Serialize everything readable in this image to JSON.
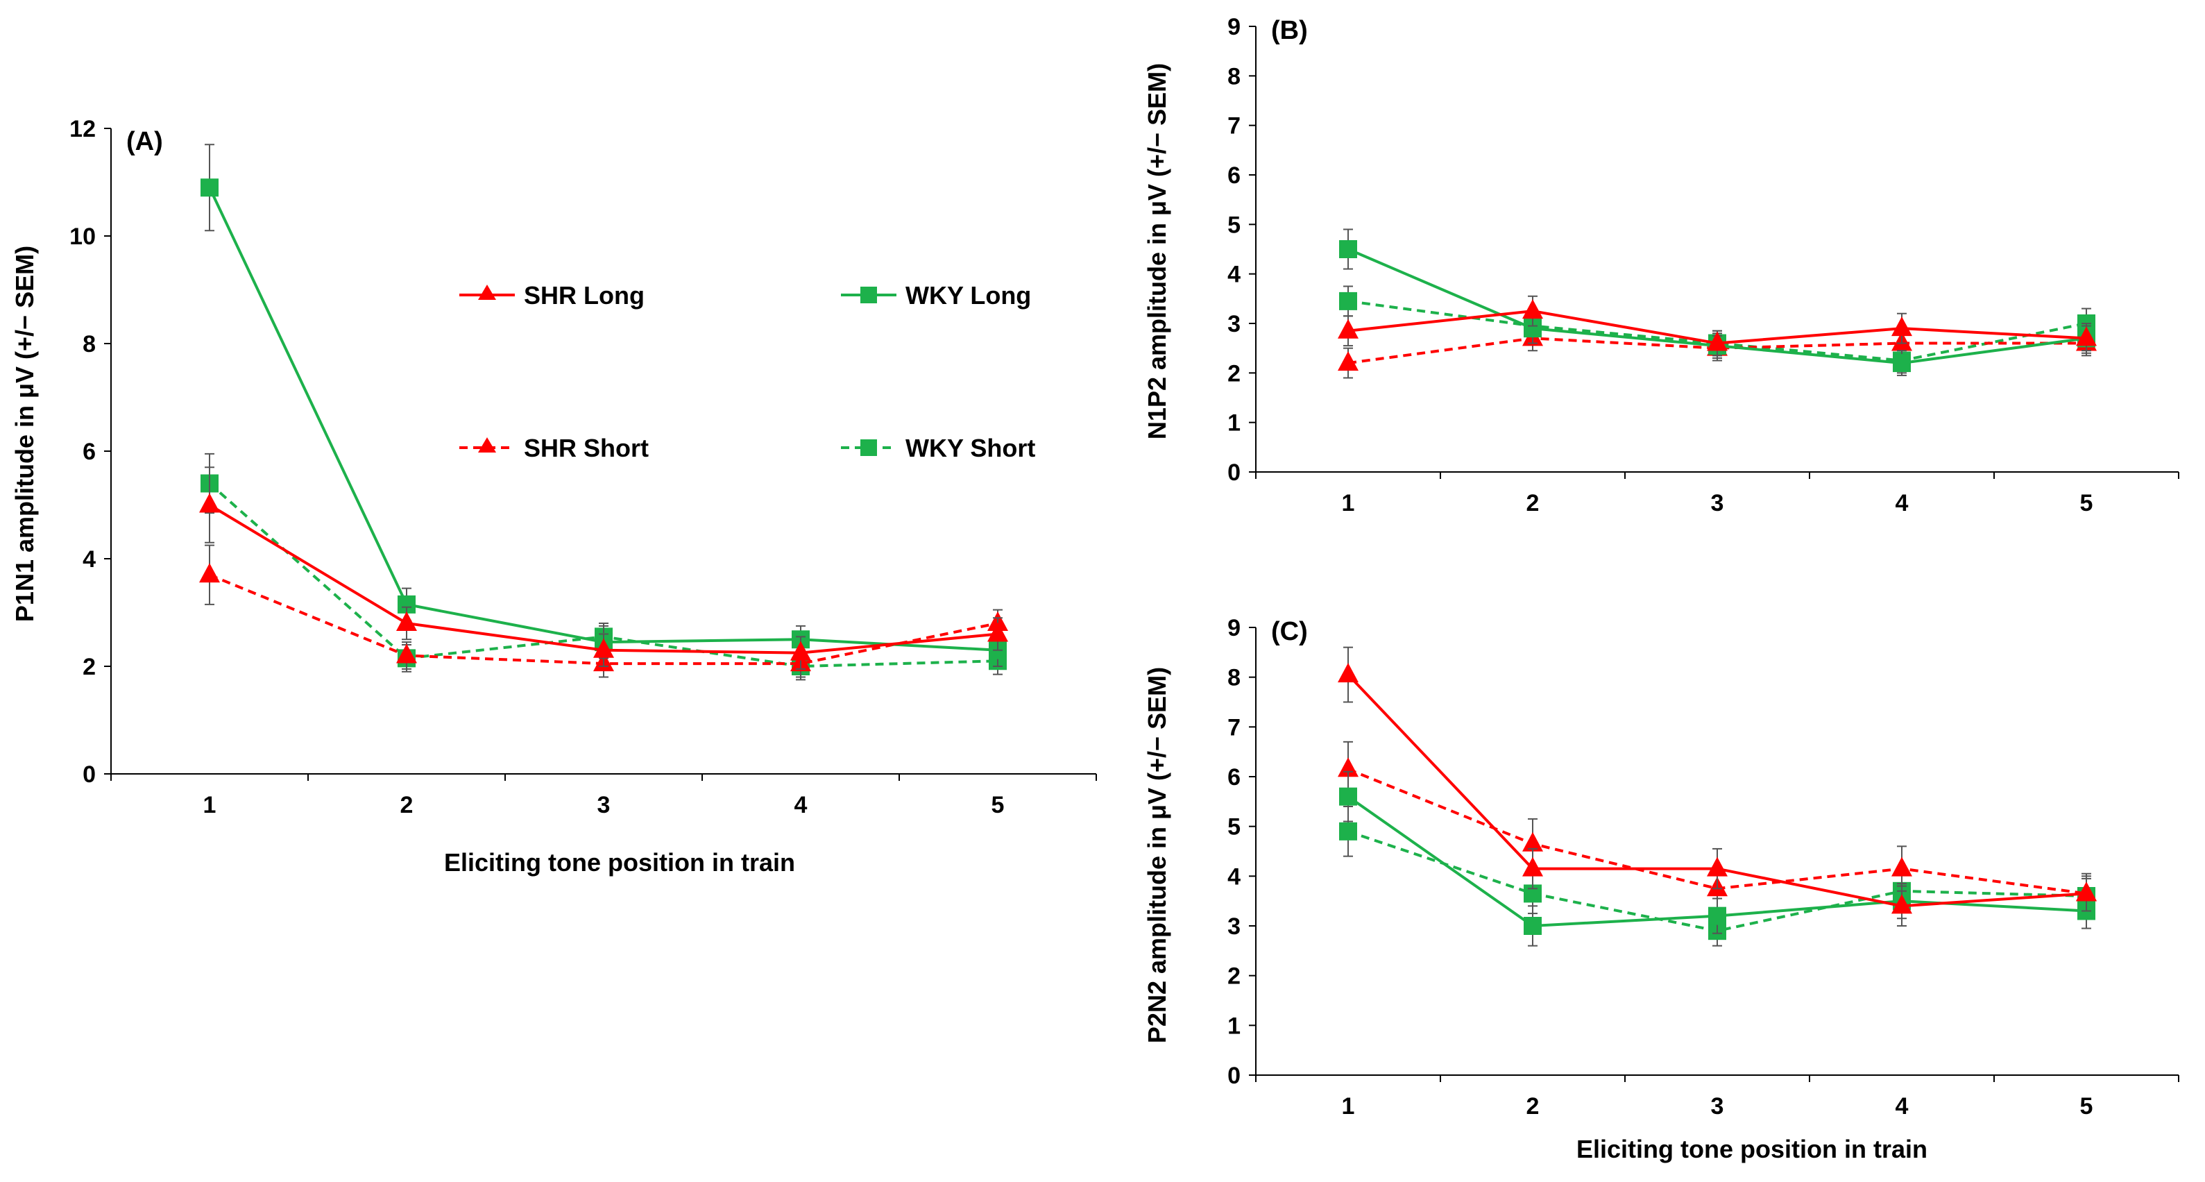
{
  "colors": {
    "SHR": "#ff0000",
    "WKY": "#1db14b",
    "axis": "#000000",
    "errorbar": "#555555"
  },
  "legend": [
    {
      "name": "SHR Long",
      "color": "#ff0000",
      "dash": "solid",
      "marker": "triangle"
    },
    {
      "name": "WKY Long",
      "color": "#1db14b",
      "dash": "solid",
      "marker": "square"
    },
    {
      "name": "SHR Short",
      "color": "#ff0000",
      "dash": "dashed",
      "marker": "triangle"
    },
    {
      "name": "WKY Short",
      "color": "#1db14b",
      "dash": "dashed",
      "marker": "square"
    }
  ],
  "chart_data": [
    {
      "id": "A",
      "panel_label": "(A)",
      "type": "line",
      "xlabel": "Eliciting tone position in train",
      "ylabel": "P1N1 amplitude in μV (+/− SEM)",
      "categories": [
        "1",
        "2",
        "3",
        "4",
        "5"
      ],
      "ylim": [
        0,
        12
      ],
      "yticks": [
        0,
        2,
        4,
        6,
        8,
        10,
        12
      ],
      "series": [
        {
          "name": "SHR Long",
          "values": [
            5.0,
            2.8,
            2.3,
            2.25,
            2.6
          ],
          "errors": [
            0.7,
            0.3,
            0.3,
            0.3,
            0.3
          ]
        },
        {
          "name": "WKY Long",
          "values": [
            10.9,
            3.15,
            2.45,
            2.5,
            2.3
          ],
          "errors": [
            0.8,
            0.3,
            0.3,
            0.25,
            0.3
          ]
        },
        {
          "name": "SHR Short",
          "values": [
            3.7,
            2.2,
            2.05,
            2.05,
            2.8
          ],
          "errors": [
            0.55,
            0.25,
            0.25,
            0.25,
            0.25
          ]
        },
        {
          "name": "WKY Short",
          "values": [
            5.4,
            2.15,
            2.55,
            2.0,
            2.1
          ],
          "errors": [
            0.55,
            0.25,
            0.25,
            0.25,
            0.25
          ]
        }
      ]
    },
    {
      "id": "B",
      "panel_label": "(B)",
      "type": "line",
      "xlabel": "",
      "ylabel": "N1P2 amplitude in μV (+/− SEM)",
      "categories": [
        "1",
        "2",
        "3",
        "4",
        "5"
      ],
      "ylim": [
        0,
        9
      ],
      "yticks": [
        0,
        1,
        2,
        3,
        4,
        5,
        6,
        7,
        8,
        9
      ],
      "series": [
        {
          "name": "SHR Long",
          "values": [
            2.85,
            3.25,
            2.6,
            2.9,
            2.7
          ],
          "errors": [
            0.3,
            0.3,
            0.25,
            0.3,
            0.25
          ]
        },
        {
          "name": "WKY Long",
          "values": [
            4.5,
            2.9,
            2.55,
            2.2,
            2.7
          ],
          "errors": [
            0.4,
            0.3,
            0.25,
            0.25,
            0.3
          ]
        },
        {
          "name": "SHR Short",
          "values": [
            2.2,
            2.7,
            2.5,
            2.6,
            2.6
          ],
          "errors": [
            0.3,
            0.25,
            0.25,
            0.3,
            0.25
          ]
        },
        {
          "name": "WKY Short",
          "values": [
            3.45,
            2.95,
            2.6,
            2.25,
            3.0
          ],
          "errors": [
            0.3,
            0.3,
            0.25,
            0.25,
            0.3
          ]
        }
      ]
    },
    {
      "id": "C",
      "panel_label": "(C)",
      "type": "line",
      "xlabel": "Eliciting tone position in train",
      "ylabel": "P2N2 amplitude in μV (+/− SEM)",
      "categories": [
        "1",
        "2",
        "3",
        "4",
        "5"
      ],
      "ylim": [
        0,
        9
      ],
      "yticks": [
        0,
        1,
        2,
        3,
        4,
        5,
        6,
        7,
        8,
        9
      ],
      "series": [
        {
          "name": "SHR Long",
          "values": [
            8.05,
            4.15,
            4.15,
            3.4,
            3.65
          ],
          "errors": [
            0.55,
            0.4,
            0.4,
            0.4,
            0.35
          ]
        },
        {
          "name": "WKY Long",
          "values": [
            5.6,
            3.0,
            3.2,
            3.5,
            3.3
          ],
          "errors": [
            0.5,
            0.4,
            0.35,
            0.35,
            0.35
          ]
        },
        {
          "name": "SHR Short",
          "values": [
            6.15,
            4.65,
            3.75,
            4.15,
            3.65
          ],
          "errors": [
            0.55,
            0.5,
            0.4,
            0.45,
            0.4
          ]
        },
        {
          "name": "WKY Short",
          "values": [
            4.9,
            3.65,
            2.9,
            3.7,
            3.6
          ],
          "errors": [
            0.5,
            0.4,
            0.3,
            0.35,
            0.35
          ]
        }
      ]
    }
  ]
}
